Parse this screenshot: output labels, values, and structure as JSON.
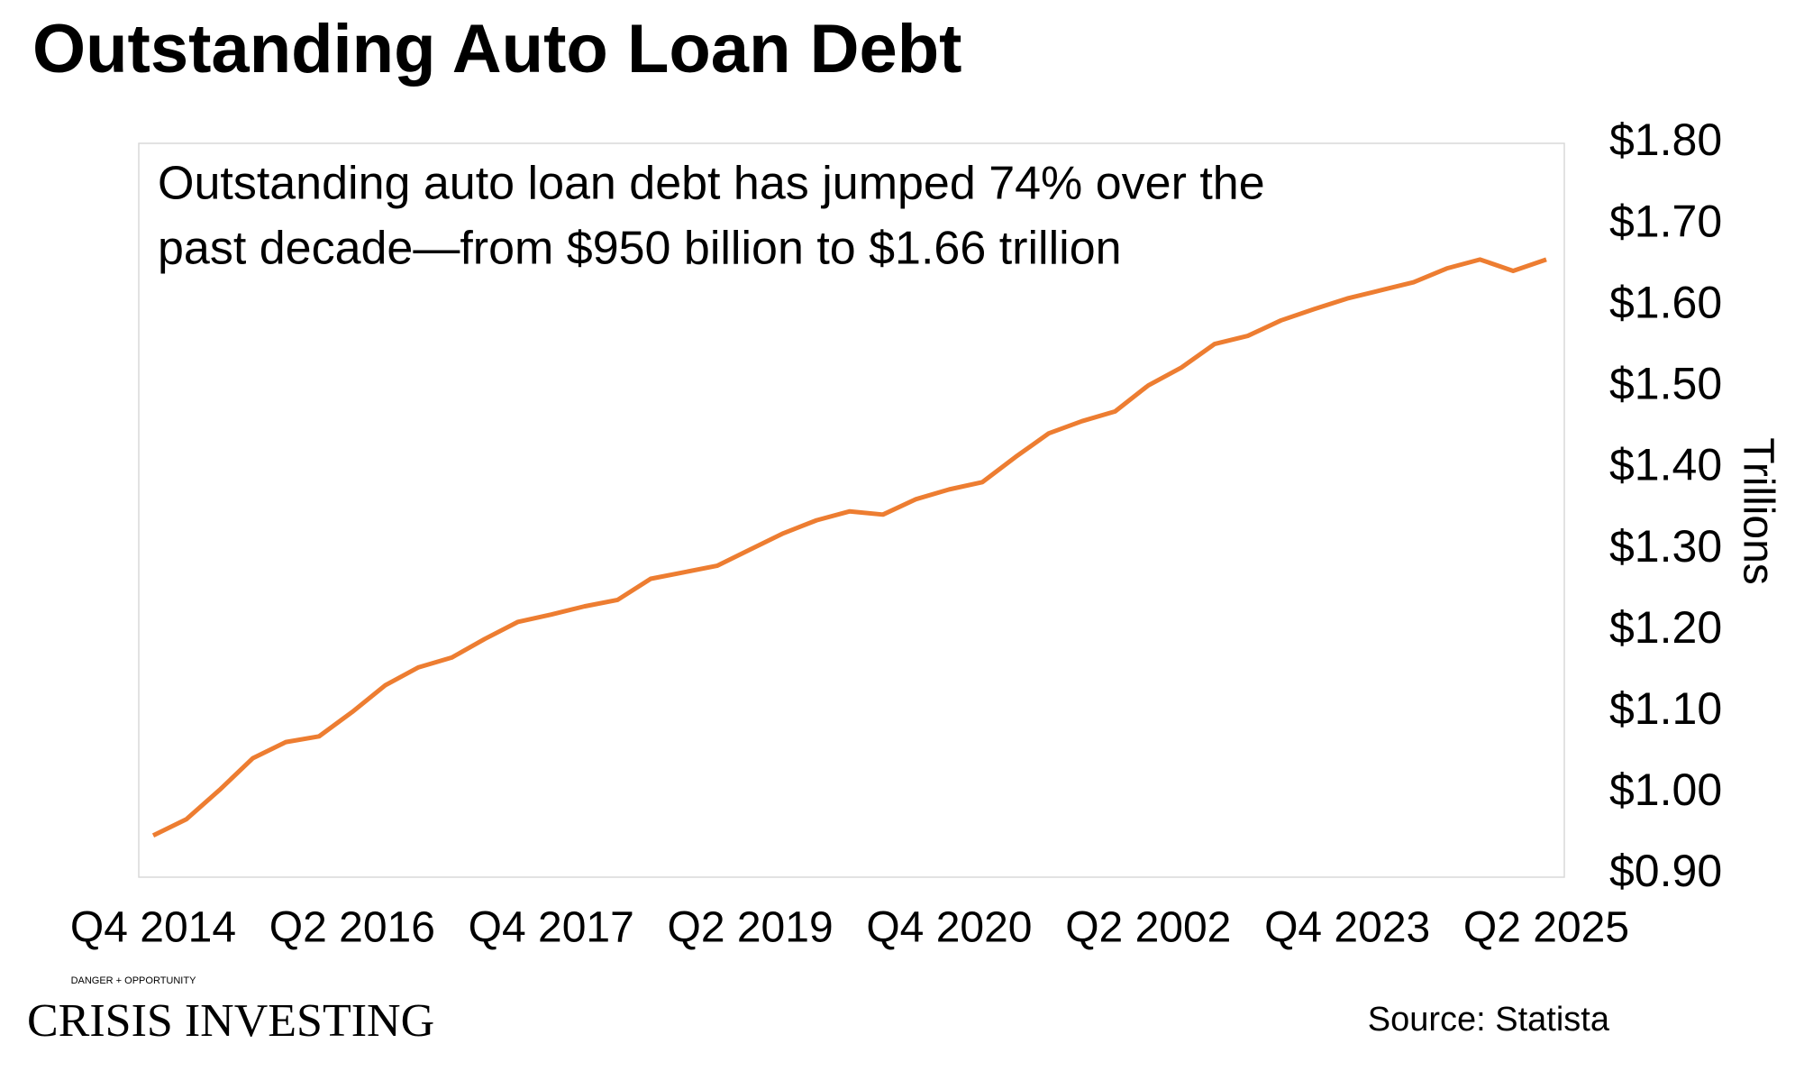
{
  "chart_data": {
    "type": "line",
    "title": "Outstanding Auto Loan Debt",
    "annotation": [
      "Outstanding auto loan debt has jumped 74% over the",
      "past decade—from $950 billion to $1.66 trillion"
    ],
    "y_axis_label": "Trillions",
    "source": "Source: Statista",
    "logo": {
      "tagline": "DANGER + OPPORTUNITY",
      "name": "Crisis Investing"
    },
    "categories": [
      "Q4 2014",
      null,
      null,
      null,
      null,
      null,
      "Q2 2016",
      null,
      null,
      null,
      null,
      null,
      "Q4 2017",
      null,
      null,
      null,
      null,
      null,
      "Q2 2019",
      null,
      null,
      null,
      null,
      null,
      "Q4 2020",
      null,
      null,
      null,
      null,
      null,
      "Q2 2002",
      null,
      null,
      null,
      null,
      null,
      "Q4 2023",
      null,
      null,
      null,
      null,
      null,
      "Q2 2025"
    ],
    "series": [
      {
        "name": "Outstanding auto loan debt",
        "color": "#ed7d31",
        "values": [
          0.948,
          0.968,
          1.004,
          1.043,
          1.063,
          1.07,
          1.1,
          1.133,
          1.155,
          1.167,
          1.19,
          1.211,
          1.22,
          1.23,
          1.238,
          1.264,
          1.272,
          1.28,
          1.3,
          1.32,
          1.336,
          1.347,
          1.343,
          1.362,
          1.374,
          1.383,
          1.414,
          1.443,
          1.458,
          1.47,
          1.502,
          1.524,
          1.553,
          1.563,
          1.582,
          1.596,
          1.609,
          1.619,
          1.629,
          1.646,
          1.657,
          1.643,
          1.657
        ]
      }
    ],
    "ylim": [
      0.9,
      1.8
    ],
    "yticks": [
      {
        "value": 0.9,
        "label": "$0.90"
      },
      {
        "value": 1.0,
        "label": "$1.00"
      },
      {
        "value": 1.1,
        "label": "$1.10"
      },
      {
        "value": 1.2,
        "label": "$1.20"
      },
      {
        "value": 1.3,
        "label": "$1.30"
      },
      {
        "value": 1.4,
        "label": "$1.40"
      },
      {
        "value": 1.5,
        "label": "$1.50"
      },
      {
        "value": 1.6,
        "label": "$1.60"
      },
      {
        "value": 1.7,
        "label": "$1.70"
      },
      {
        "value": 1.8,
        "label": "$1.80"
      }
    ],
    "y_axis_side": "right",
    "grid": false
  }
}
